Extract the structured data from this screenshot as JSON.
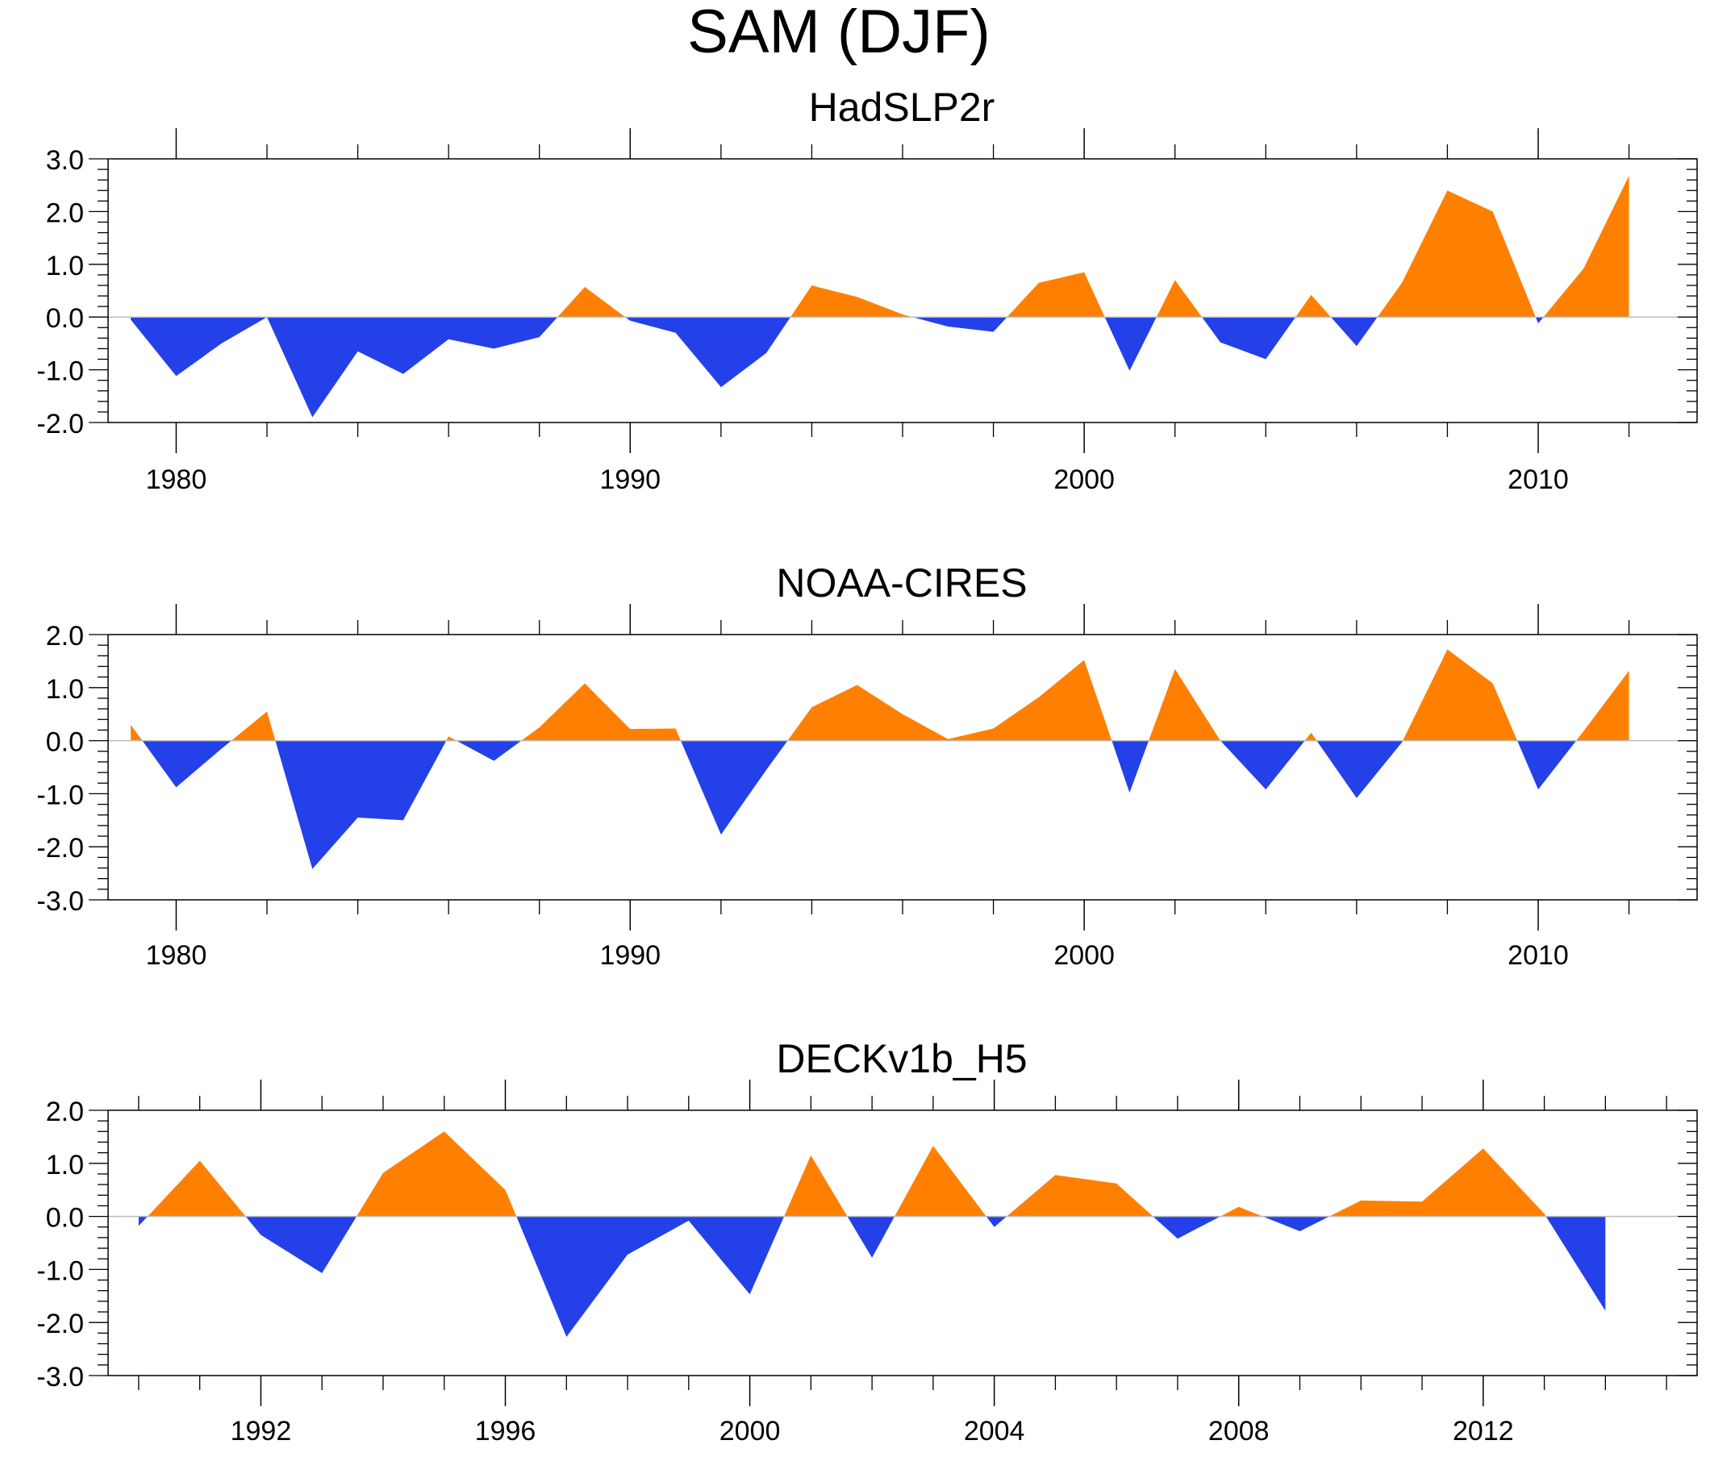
{
  "title": "SAM (DJF)",
  "colors": {
    "positive": "#ff8000",
    "negative": "#2440e8",
    "axis": "#000000",
    "zero_line": "#bbbbbb"
  },
  "chart_data": [
    {
      "type": "area",
      "title": "HadSLP2r",
      "x": [
        1979,
        1980,
        1981,
        1982,
        1983,
        1984,
        1985,
        1986,
        1987,
        1988,
        1989,
        1990,
        1991,
        1992,
        1993,
        1994,
        1995,
        1996,
        1997,
        1998,
        1999,
        2000,
        2001,
        2002,
        2003,
        2004,
        2005,
        2006,
        2007,
        2008,
        2009,
        2010,
        2011,
        2012
      ],
      "values": [
        -0.05,
        -1.12,
        -0.5,
        0.0,
        -1.9,
        -0.65,
        -1.08,
        -0.42,
        -0.6,
        -0.38,
        0.57,
        -0.07,
        -0.3,
        -1.33,
        -0.68,
        0.6,
        0.38,
        0.05,
        -0.18,
        -0.28,
        0.65,
        0.85,
        -1.02,
        0.7,
        -0.48,
        -0.8,
        0.42,
        -0.55,
        0.65,
        2.4,
        2.0,
        -0.12,
        0.92,
        2.68
      ],
      "xlim": [
        1978.5,
        2013.5
      ],
      "ylim": [
        -2.0,
        3.0
      ],
      "yticks": [
        "3.0",
        "2.0",
        "1.0",
        "0.0",
        "-1.0",
        "-2.0"
      ],
      "ytick_values": [
        3,
        2,
        1,
        0,
        -1,
        -2
      ],
      "xticks": [
        "1980",
        "1990",
        "2000",
        "2010"
      ],
      "xtick_values": [
        1980,
        1990,
        2000,
        2010
      ],
      "xminor": [
        1982,
        1984,
        1986,
        1988,
        1992,
        1994,
        1996,
        1998,
        2002,
        2004,
        2006,
        2008,
        2012
      ]
    },
    {
      "type": "area",
      "title": "NOAA-CIRES",
      "x": [
        1979,
        1980,
        1981,
        1982,
        1983,
        1984,
        1985,
        1986,
        1987,
        1988,
        1989,
        1990,
        1991,
        1992,
        1993,
        1994,
        1995,
        1996,
        1997,
        1998,
        1999,
        2000,
        2001,
        2002,
        2003,
        2004,
        2005,
        2006,
        2007,
        2008,
        2009,
        2010,
        2011,
        2012
      ],
      "values": [
        0.3,
        -0.88,
        -0.15,
        0.55,
        -2.42,
        -1.45,
        -1.5,
        0.08,
        -0.38,
        0.25,
        1.08,
        0.22,
        0.23,
        -1.77,
        -0.55,
        0.63,
        1.05,
        0.5,
        0.03,
        0.23,
        0.82,
        1.52,
        -0.98,
        1.35,
        0.0,
        -0.92,
        0.15,
        -1.08,
        -0.03,
        1.72,
        1.08,
        -0.92,
        0.18,
        1.32
      ],
      "xlim": [
        1978.5,
        2013.5
      ],
      "ylim": [
        -3.0,
        2.0
      ],
      "yticks": [
        "2.0",
        "1.0",
        "0.0",
        "-1.0",
        "-2.0",
        "-3.0"
      ],
      "ytick_values": [
        2,
        1,
        0,
        -1,
        -2,
        -3
      ],
      "xticks": [
        "1980",
        "1990",
        "2000",
        "2010"
      ],
      "xtick_values": [
        1980,
        1990,
        2000,
        2010
      ],
      "xminor": [
        1982,
        1984,
        1986,
        1988,
        1992,
        1994,
        1996,
        1998,
        2002,
        2004,
        2006,
        2008,
        2012
      ]
    },
    {
      "type": "area",
      "title": "DECKv1b_H5",
      "x": [
        1990,
        1991,
        1992,
        1993,
        1994,
        1995,
        1996,
        1997,
        1998,
        1999,
        2000,
        2001,
        2002,
        2003,
        2004,
        2005,
        2006,
        2007,
        2008,
        2009,
        2010,
        2011,
        2012,
        2013,
        2014
      ],
      "values": [
        -0.18,
        1.05,
        -0.35,
        -1.07,
        0.82,
        1.6,
        0.5,
        -2.27,
        -0.72,
        -0.08,
        -1.47,
        1.15,
        -0.78,
        1.33,
        -0.2,
        0.78,
        0.62,
        -0.42,
        0.18,
        -0.28,
        0.3,
        0.28,
        1.28,
        0.05,
        -1.78
      ],
      "xlim": [
        1989.5,
        2015.5
      ],
      "ylim": [
        -3.0,
        2.0
      ],
      "yticks": [
        "2.0",
        "1.0",
        "0.0",
        "-1.0",
        "-2.0",
        "-3.0"
      ],
      "ytick_values": [
        2,
        1,
        0,
        -1,
        -2,
        -3
      ],
      "xticks": [
        "1992",
        "1996",
        "2000",
        "2004",
        "2008",
        "2012"
      ],
      "xtick_values": [
        1992,
        1996,
        2000,
        2004,
        2008,
        2012
      ],
      "xminor": [
        1990,
        1991,
        1993,
        1994,
        1995,
        1997,
        1998,
        1999,
        2001,
        2002,
        2003,
        2005,
        2006,
        2007,
        2009,
        2010,
        2011,
        2013,
        2014,
        2015
      ]
    }
  ]
}
